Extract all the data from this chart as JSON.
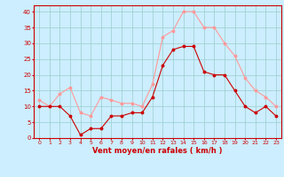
{
  "hours": [
    0,
    1,
    2,
    3,
    4,
    5,
    6,
    7,
    8,
    9,
    10,
    11,
    12,
    13,
    14,
    15,
    16,
    17,
    18,
    19,
    20,
    21,
    22,
    23
  ],
  "wind_avg": [
    10,
    10,
    10,
    7,
    1,
    3,
    3,
    7,
    7,
    8,
    8,
    13,
    23,
    28,
    29,
    29,
    21,
    20,
    20,
    15,
    10,
    8,
    10,
    7
  ],
  "wind_gust": [
    12,
    10,
    14,
    16,
    8,
    7,
    13,
    12,
    11,
    11,
    10,
    17,
    32,
    34,
    40,
    40,
    35,
    35,
    30,
    26,
    19,
    15,
    13,
    10
  ],
  "avg_color": "#cc0000",
  "gust_color": "#ff9999",
  "bg_color": "#cceeff",
  "grid_color": "#99cccc",
  "xlabel": "Vent moyen/en rafales ( km/h )",
  "xlabel_color": "#cc0000",
  "ylabel_color": "#cc0000",
  "tick_color": "#cc0000",
  "ylim": [
    0,
    42
  ],
  "yticks": [
    0,
    5,
    10,
    15,
    20,
    25,
    30,
    35,
    40
  ],
  "spine_color": "#cc0000"
}
